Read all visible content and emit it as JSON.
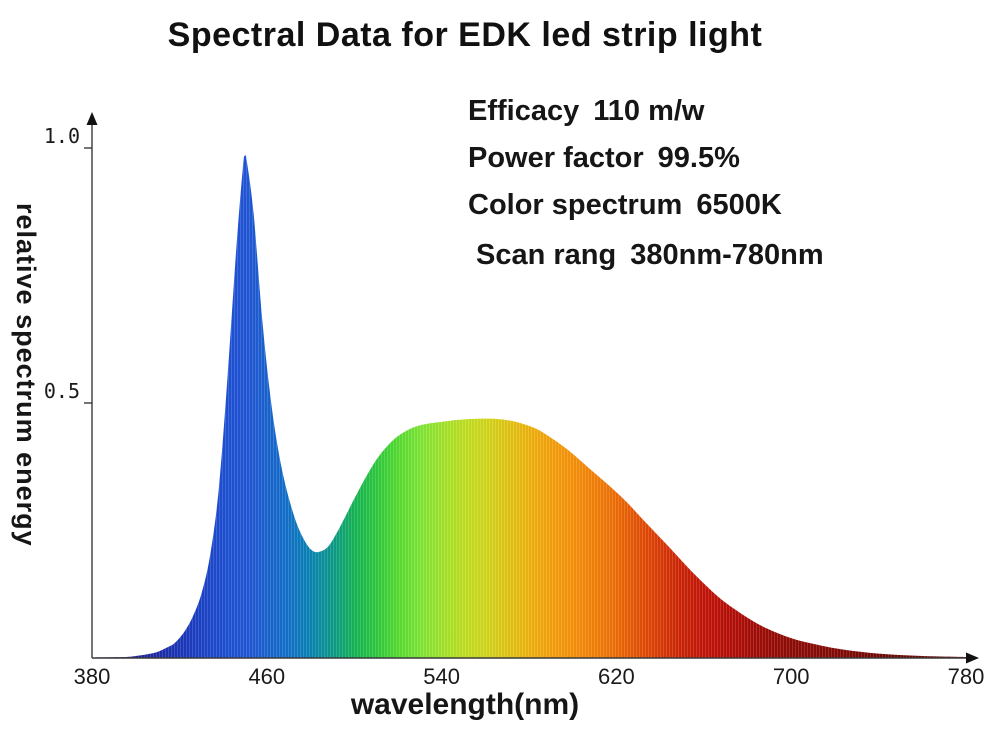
{
  "page": {
    "background": "#ffffff"
  },
  "header": {
    "title": "Spectral Data for EDK led strip light"
  },
  "annotations": [
    {
      "label": "Efficacy",
      "value": "110 m/w"
    },
    {
      "label": "Power factor",
      "value": "99.5%"
    },
    {
      "label": "Color spectrum",
      "value": "6500K"
    },
    {
      "label": "Scan rang",
      "value": "380nm-780nm"
    }
  ],
  "colors": {
    "axis": "#3a3a3a",
    "arrow": "#111111",
    "text": "#161616",
    "background": "#ffffff"
  },
  "chart_data": {
    "type": "area",
    "title": "Spectral Data for EDK led strip light",
    "xlabel": "wavelength(nm)",
    "ylabel": "relative spectrum energy",
    "xlim": [
      380,
      780
    ],
    "ylim": [
      0,
      1.05
    ],
    "x_ticks": [
      380,
      460,
      540,
      620,
      700,
      780
    ],
    "y_ticks": [
      {
        "value": 1.0,
        "label": "1.0"
      },
      {
        "value": 0.5,
        "label": "0.5"
      }
    ],
    "grid": false,
    "legend": "none",
    "features": {
      "blue_peak_nm": 450,
      "blue_peak_value": 0.985,
      "dip_nm": 481,
      "dip_value": 0.21,
      "phosphor_hump_nm": 560,
      "phosphor_hump_value": 0.47
    },
    "series": [
      {
        "name": "relative spectrum energy",
        "points": [
          [
            380,
            0.001
          ],
          [
            395,
            0.002
          ],
          [
            400,
            0.004
          ],
          [
            405,
            0.007
          ],
          [
            410,
            0.012
          ],
          [
            415,
            0.022
          ],
          [
            418,
            0.03
          ],
          [
            422,
            0.05
          ],
          [
            426,
            0.08
          ],
          [
            430,
            0.125
          ],
          [
            434,
            0.2
          ],
          [
            438,
            0.33
          ],
          [
            442,
            0.55
          ],
          [
            446,
            0.8
          ],
          [
            449,
            0.96
          ],
          [
            450,
            0.985
          ],
          [
            451,
            0.97
          ],
          [
            454,
            0.87
          ],
          [
            458,
            0.66
          ],
          [
            462,
            0.5
          ],
          [
            466,
            0.39
          ],
          [
            470,
            0.315
          ],
          [
            474,
            0.26
          ],
          [
            478,
            0.225
          ],
          [
            481,
            0.21
          ],
          [
            484,
            0.208
          ],
          [
            488,
            0.218
          ],
          [
            492,
            0.245
          ],
          [
            496,
            0.278
          ],
          [
            500,
            0.312
          ],
          [
            505,
            0.352
          ],
          [
            510,
            0.388
          ],
          [
            515,
            0.415
          ],
          [
            520,
            0.435
          ],
          [
            526,
            0.45
          ],
          [
            532,
            0.458
          ],
          [
            540,
            0.463
          ],
          [
            548,
            0.467
          ],
          [
            556,
            0.469
          ],
          [
            564,
            0.469
          ],
          [
            572,
            0.465
          ],
          [
            578,
            0.458
          ],
          [
            584,
            0.448
          ],
          [
            590,
            0.432
          ],
          [
            596,
            0.414
          ],
          [
            602,
            0.393
          ],
          [
            608,
            0.37
          ],
          [
            614,
            0.348
          ],
          [
            620,
            0.325
          ],
          [
            626,
            0.3
          ],
          [
            632,
            0.272
          ],
          [
            638,
            0.245
          ],
          [
            644,
            0.218
          ],
          [
            650,
            0.19
          ],
          [
            656,
            0.163
          ],
          [
            662,
            0.138
          ],
          [
            668,
            0.115
          ],
          [
            674,
            0.096
          ],
          [
            680,
            0.079
          ],
          [
            686,
            0.064
          ],
          [
            692,
            0.052
          ],
          [
            698,
            0.042
          ],
          [
            704,
            0.034
          ],
          [
            712,
            0.026
          ],
          [
            720,
            0.019
          ],
          [
            728,
            0.014
          ],
          [
            736,
            0.01
          ],
          [
            744,
            0.0075
          ],
          [
            752,
            0.0055
          ],
          [
            760,
            0.004
          ],
          [
            768,
            0.003
          ],
          [
            780,
            0.002
          ]
        ]
      }
    ],
    "spectrum_palette": [
      {
        "nm": 380,
        "hex": "#26208a"
      },
      {
        "nm": 395,
        "hex": "#23238c"
      },
      {
        "nm": 410,
        "hex": "#1e2da6"
      },
      {
        "nm": 425,
        "hex": "#1c3cc0"
      },
      {
        "nm": 440,
        "hex": "#1e4fd2"
      },
      {
        "nm": 450,
        "hex": "#2256d6"
      },
      {
        "nm": 460,
        "hex": "#1b63cf"
      },
      {
        "nm": 470,
        "hex": "#1272c8"
      },
      {
        "nm": 480,
        "hex": "#0b84b4"
      },
      {
        "nm": 490,
        "hex": "#0e9a8a"
      },
      {
        "nm": 500,
        "hex": "#16b455"
      },
      {
        "nm": 510,
        "hex": "#2ec93e"
      },
      {
        "nm": 520,
        "hex": "#55dc30"
      },
      {
        "nm": 530,
        "hex": "#7ee636"
      },
      {
        "nm": 540,
        "hex": "#a0e42c"
      },
      {
        "nm": 550,
        "hex": "#bedf22"
      },
      {
        "nm": 560,
        "hex": "#d2d81c"
      },
      {
        "nm": 570,
        "hex": "#e0c614"
      },
      {
        "nm": 580,
        "hex": "#eeb30e"
      },
      {
        "nm": 590,
        "hex": "#f5a00c"
      },
      {
        "nm": 600,
        "hex": "#f6920a"
      },
      {
        "nm": 610,
        "hex": "#f28008"
      },
      {
        "nm": 620,
        "hex": "#ed6d06"
      },
      {
        "nm": 630,
        "hex": "#e55206"
      },
      {
        "nm": 640,
        "hex": "#da3a06"
      },
      {
        "nm": 650,
        "hex": "#cc2406"
      },
      {
        "nm": 660,
        "hex": "#c41508"
      },
      {
        "nm": 670,
        "hex": "#b81008"
      },
      {
        "nm": 680,
        "hex": "#a80e07"
      },
      {
        "nm": 690,
        "hex": "#9a0d06"
      },
      {
        "nm": 700,
        "hex": "#8e0c06"
      },
      {
        "nm": 720,
        "hex": "#840c06"
      },
      {
        "nm": 740,
        "hex": "#730a05"
      },
      {
        "nm": 760,
        "hex": "#660903"
      },
      {
        "nm": 780,
        "hex": "#5e0803"
      }
    ]
  }
}
